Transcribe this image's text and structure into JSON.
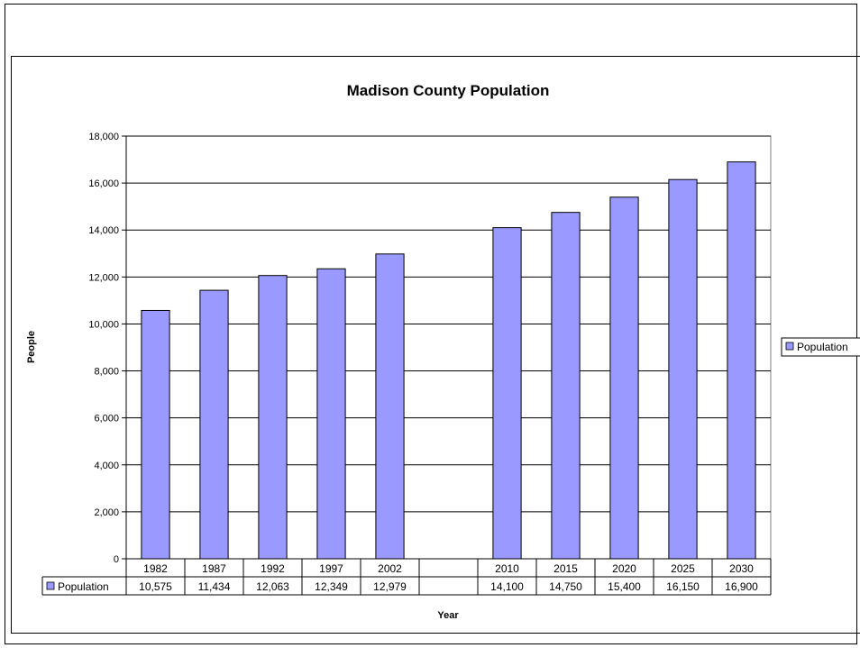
{
  "chart_data": {
    "type": "bar",
    "title": "Madison County Population",
    "xlabel": "Year",
    "ylabel": "People",
    "categories": [
      "1982",
      "1987",
      "1992",
      "1997",
      "2002",
      "",
      "2010",
      "2015",
      "2020",
      "2025",
      "2030"
    ],
    "series": [
      {
        "name": "Population",
        "values": [
          10575,
          11434,
          12063,
          12349,
          12979,
          null,
          14100,
          14750,
          15400,
          16150,
          16900
        ],
        "labels": [
          "10,575",
          "11,434",
          "12,063",
          "12,349",
          "12,979",
          "",
          "14,100",
          "14,750",
          "15,400",
          "16,150",
          "16,900"
        ]
      }
    ],
    "ylim": [
      0,
      18000
    ],
    "yticks": [
      "0",
      "2,000",
      "4,000",
      "6,000",
      "8,000",
      "10,000",
      "12,000",
      "14,000",
      "16,000",
      "18,000"
    ],
    "grid": true,
    "legend": "right",
    "data_table": true,
    "bar_color": "#9999ff",
    "plot_background": "#ffffff"
  }
}
